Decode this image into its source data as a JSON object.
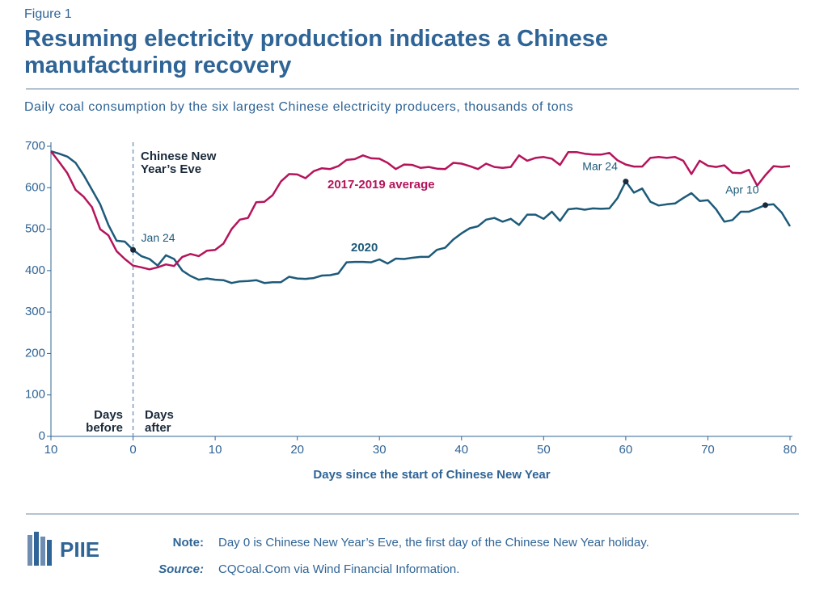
{
  "figure_label": "Figure 1",
  "title": "Resuming electricity production indicates a Chinese manufacturing recovery",
  "chart_data": {
    "type": "line",
    "subtitle": "Daily coal consumption by the six largest Chinese electricity producers, thousands of tons",
    "x_label": "Days since the start of Chinese New Year",
    "x": [
      -10,
      -9,
      -8,
      -7,
      -6,
      -5,
      -4,
      -3,
      -2,
      -1,
      0,
      1,
      2,
      3,
      4,
      5,
      6,
      7,
      8,
      9,
      10,
      11,
      12,
      13,
      14,
      15,
      16,
      17,
      18,
      19,
      20,
      21,
      22,
      23,
      24,
      25,
      26,
      27,
      28,
      29,
      30,
      31,
      32,
      33,
      34,
      35,
      36,
      37,
      38,
      39,
      40,
      41,
      42,
      43,
      44,
      45,
      46,
      47,
      48,
      49,
      50,
      51,
      52,
      53,
      54,
      55,
      56,
      57,
      58,
      59,
      60,
      61,
      62,
      63,
      64,
      65,
      66,
      67,
      68,
      69,
      70,
      71,
      72,
      73,
      74,
      75,
      76,
      77,
      78,
      79,
      80
    ],
    "series": [
      {
        "name": "2020",
        "color": "#1d5a7a",
        "values": [
          688,
          682,
          675,
          660,
          630,
          595,
          560,
          510,
          472,
          470,
          450,
          435,
          428,
          412,
          437,
          428,
          400,
          387,
          378,
          381,
          378,
          377,
          370,
          374,
          375,
          377,
          370,
          372,
          372,
          385,
          381,
          380,
          382,
          388,
          389,
          393,
          420,
          421,
          421,
          420,
          427,
          417,
          429,
          428,
          431,
          433,
          433,
          450,
          455,
          475,
          490,
          502,
          507,
          523,
          527,
          518,
          525,
          510,
          535,
          535,
          525,
          542,
          520,
          548,
          550,
          547,
          550,
          549,
          550,
          575,
          615,
          588,
          598,
          566,
          557,
          560,
          562,
          575,
          587,
          568,
          570,
          548,
          518,
          522,
          542,
          542,
          550,
          558,
          560,
          540,
          507
        ]
      },
      {
        "name": "2017-2019 average",
        "color": "#b5145b",
        "values": [
          688,
          662,
          635,
          595,
          578,
          553,
          500,
          485,
          447,
          428,
          412,
          408,
          403,
          408,
          415,
          411,
          433,
          440,
          435,
          448,
          450,
          465,
          500,
          523,
          527,
          565,
          566,
          582,
          615,
          633,
          632,
          623,
          640,
          647,
          645,
          652,
          667,
          669,
          678,
          671,
          670,
          660,
          645,
          656,
          655,
          648,
          650,
          646,
          645,
          660,
          658,
          652,
          645,
          658,
          650,
          648,
          650,
          678,
          665,
          672,
          674,
          670,
          655,
          686,
          686,
          682,
          680,
          680,
          684,
          666,
          656,
          651,
          651,
          672,
          674,
          672,
          674,
          665,
          633,
          665,
          653,
          650,
          654,
          636,
          635,
          643,
          605,
          630,
          652,
          650,
          652
        ]
      }
    ],
    "xlim": [
      -10,
      81
    ],
    "xticks": [
      {
        "value": -10,
        "label": "10"
      },
      0,
      10,
      20,
      30,
      40,
      50,
      60,
      70,
      80
    ],
    "ylim": [
      0,
      700
    ],
    "yticks": [
      0,
      100,
      200,
      300,
      400,
      500,
      600,
      700
    ],
    "grid": false,
    "annotations": [
      {
        "lines": [
          "Chinese New",
          "Year’s Eve"
        ]
      },
      {
        "lines": [
          "Days",
          "before"
        ]
      },
      {
        "lines": [
          "Days",
          "after"
        ]
      }
    ],
    "point_labels": [
      {
        "text": "Jan 24",
        "x": 0
      },
      {
        "text": "Mar 24",
        "x": 60
      },
      {
        "text": "Apr 10",
        "x": 77
      }
    ]
  },
  "footer": {
    "logo": "PIIE",
    "note_label": "Note:",
    "note": "Day 0 is Chinese New Year’s Eve, the first day of the Chinese New Year holiday.",
    "source_label": "Source:",
    "source": "CQCoal.Com via Wind Financial Information."
  }
}
